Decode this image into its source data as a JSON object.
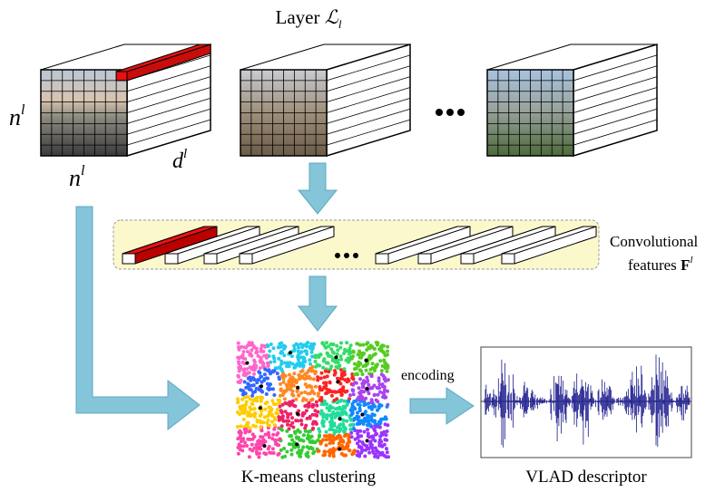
{
  "title": {
    "text": "Layer",
    "symbol": "ℒ",
    "subscript": "l"
  },
  "cube_labels": {
    "height": {
      "base": "n",
      "sup": "l"
    },
    "width": {
      "base": "n",
      "sup": "l"
    },
    "depth": {
      "base": "d",
      "sup": "l"
    }
  },
  "features": {
    "line1": "Convolutional",
    "line2": "features",
    "symbol": "F",
    "sup": "l"
  },
  "encoding_label": "encoding",
  "kmeans_label": "K-means clustering",
  "vlad_label": "VLAD descriptor"
}
